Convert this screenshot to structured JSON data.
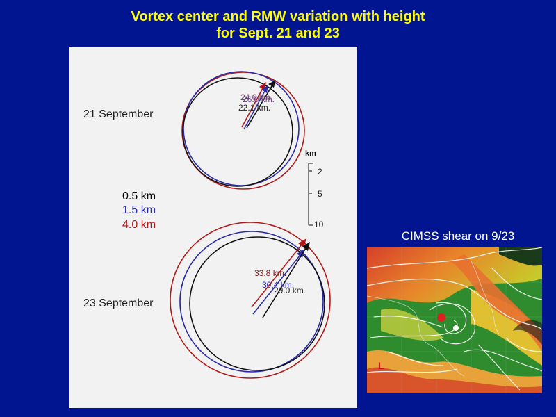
{
  "title_line1": "Vortex center and RMW variation with height",
  "title_line2": "for Sept. 21 and 23",
  "diagram": {
    "row1_label": "21 September",
    "row2_label": "23 September",
    "legend": [
      {
        "label": "0.5 km",
        "color": "#000000"
      },
      {
        "label": "1.5 km",
        "color": "#2a2aa8"
      },
      {
        "label": "4.0 km",
        "color": "#b01818"
      }
    ],
    "scale": {
      "unit": "km",
      "ticks": [
        "2",
        "5",
        "10"
      ]
    },
    "sep21_rmw": [
      "24.6 km.",
      "26.0 km.",
      "22.1 km."
    ],
    "sep23_rmw": [
      "33.8 km.",
      "30.4 km.",
      "29.0 km."
    ]
  },
  "inset": {
    "title": "CIMSS shear on 9/23",
    "corner_label": "L"
  },
  "colors": {
    "background": "#00158f",
    "title": "#ffff00",
    "low": "#000000",
    "mid": "#2a2aa8",
    "high": "#b01818"
  }
}
